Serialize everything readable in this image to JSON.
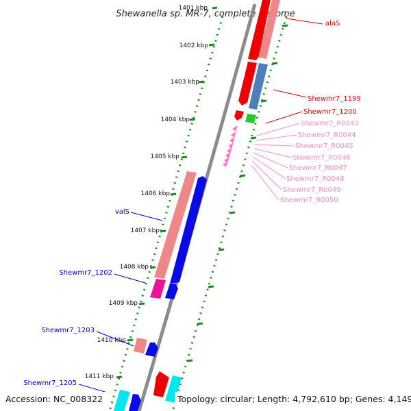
{
  "title": "Shewanella sp. MR-7, complete genome",
  "accession": "Accession: NC_008322",
  "topology": "Topology: circular; Length: 4,792,610 bp; Genes: 4,149",
  "ticks": [
    {
      "kbp": 1401,
      "label": "1401 kbp"
    },
    {
      "kbp": 1402,
      "label": "1402 kbp"
    },
    {
      "kbp": 1403,
      "label": "1403 kbp"
    },
    {
      "kbp": 1404,
      "label": "1404 kbp"
    },
    {
      "kbp": 1405,
      "label": "1405 kbp"
    },
    {
      "kbp": 1406,
      "label": "1406 kbp"
    },
    {
      "kbp": 1407,
      "label": "1407 kbp"
    },
    {
      "kbp": 1408,
      "label": "1408 kbp"
    },
    {
      "kbp": 1409,
      "label": "1409 kbp"
    },
    {
      "kbp": 1410,
      "label": "1410 kbp"
    },
    {
      "kbp": 1411,
      "label": "1411 kbp"
    }
  ],
  "right_labels": [
    {
      "text": "alaS",
      "color": "#e00000"
    },
    {
      "text": "Shewmr7_1199",
      "color": "#e00000"
    },
    {
      "text": "Shewmr7_1200",
      "color": "#e00000"
    },
    {
      "text": "Shewmr7_R0043",
      "color": "#f48cc0"
    },
    {
      "text": "Shewmr7_R0044",
      "color": "#f48cc0"
    },
    {
      "text": "Shewmr7_R0045",
      "color": "#f48cc0"
    },
    {
      "text": "Shewmr7_R0046",
      "color": "#f48cc0"
    },
    {
      "text": "Shewmr7_R0047",
      "color": "#f48cc0"
    },
    {
      "text": "Shewmr7_R0048",
      "color": "#f48cc0"
    },
    {
      "text": "Shewmr7_R0049",
      "color": "#f48cc0"
    },
    {
      "text": "Shewmr7_R0050",
      "color": "#f48cc0"
    }
  ],
  "left_labels": [
    {
      "text": "valS",
      "color": "#0000cc"
    },
    {
      "text": "Shewmr7_1202",
      "color": "#0000cc"
    },
    {
      "text": "Shewmr7_1203",
      "color": "#0000cc"
    },
    {
      "text": "Shewmr7_1205",
      "color": "#0000cc"
    }
  ],
  "colors": {
    "backbone": "#8c8c8c",
    "tick": "#1a8a1a",
    "red": "#ee0000",
    "salmon": "#ee8888",
    "steel_blue": "#4f7fb8",
    "blue": "#0a0ae6",
    "magenta": "#ee1199",
    "green": "#22cc22",
    "pink": "#ff77cc",
    "cyan": "#00e5ee"
  }
}
